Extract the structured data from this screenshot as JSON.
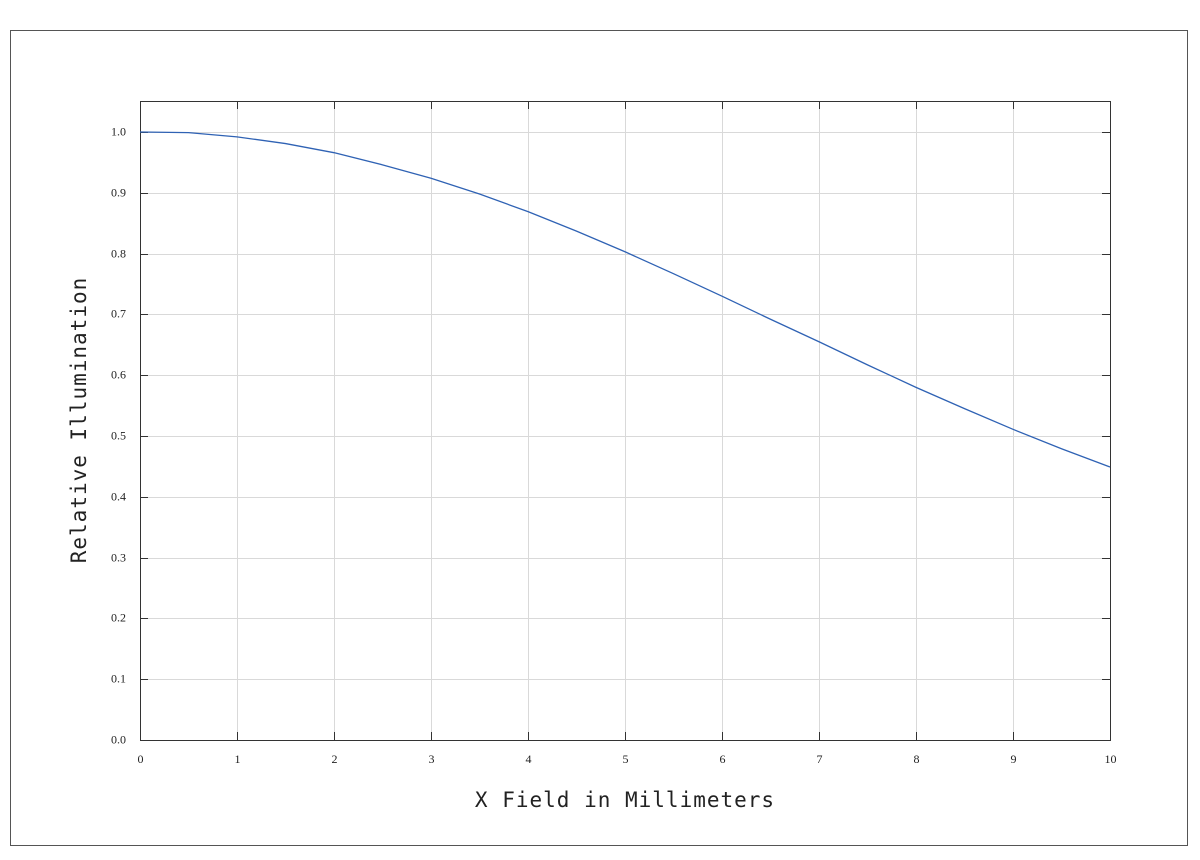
{
  "chart_data": {
    "type": "line",
    "x_label": "X Field in Millimeters",
    "y_label": "Relative Illumination",
    "x": [
      0,
      0.5,
      1,
      1.5,
      2,
      2.5,
      3,
      3.5,
      4,
      4.5,
      5,
      5.5,
      6,
      6.5,
      7,
      7.5,
      8,
      8.5,
      9,
      9.5,
      10
    ],
    "series": [
      {
        "name": "Relative Illumination",
        "color": "#2f62b4",
        "values": [
          1.0,
          0.999,
          0.992,
          0.981,
          0.966,
          0.946,
          0.924,
          0.898,
          0.869,
          0.837,
          0.803,
          0.767,
          0.73,
          0.692,
          0.655,
          0.617,
          0.58,
          0.545,
          0.511,
          0.479,
          0.449
        ]
      }
    ],
    "xlim": [
      0,
      10
    ],
    "xticks": [
      0,
      1,
      2,
      3,
      4,
      5,
      6,
      7,
      8,
      9,
      10
    ],
    "ylim": [
      0,
      1.051
    ],
    "yticks": [
      {
        "value": 0,
        "label": "0.0"
      },
      0.1,
      0.2,
      0.3,
      0.4,
      0.5,
      0.6,
      0.7,
      0.8,
      0.9,
      {
        "value": 1,
        "label": "1.0"
      }
    ],
    "grid": true
  }
}
